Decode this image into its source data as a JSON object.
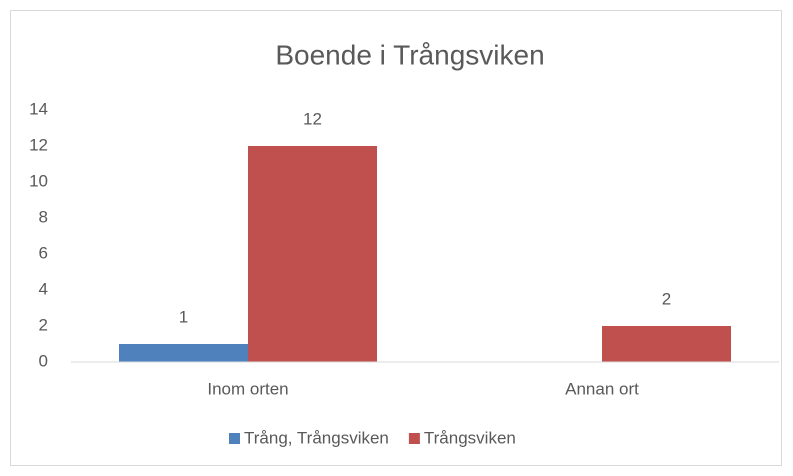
{
  "chart_data": {
    "type": "bar",
    "title": "Boende i Trångsviken",
    "categories": [
      "Inom orten",
      "Annan ort"
    ],
    "series": [
      {
        "name": "Trång, Trångsviken",
        "color": "#4f81bd",
        "values": [
          1,
          null
        ]
      },
      {
        "name": "Trångsviken",
        "color": "#c0504d",
        "values": [
          12,
          2
        ]
      }
    ],
    "ylim": [
      0,
      14
    ],
    "yticks": [
      0,
      2,
      4,
      6,
      8,
      10,
      12,
      14
    ],
    "grid": false,
    "legend": "bottom",
    "data_labels": true
  }
}
